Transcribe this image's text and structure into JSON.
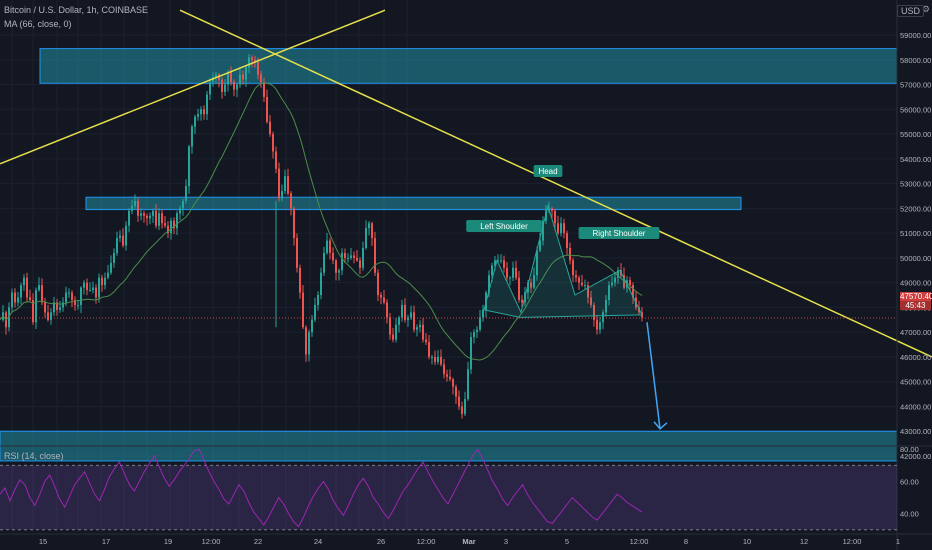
{
  "header": {
    "symbol": "Bitcoin / U.S. Dollar, 1h, COINBASE",
    "ma_label": "MA (66, close, 0)",
    "currency": "USD"
  },
  "rsi": {
    "label": "RSI (14, close)",
    "levels": [
      "80.00",
      "60.00",
      "40.00"
    ]
  },
  "price_tag": {
    "price": "47570.40",
    "countdown": "45:43"
  },
  "chart_data": {
    "type": "candlestick",
    "symbol": "Bitcoin / U.S. Dollar",
    "interval": "1h",
    "exchange": "COINBASE",
    "ylim": [
      41700,
      59200
    ],
    "price_ticks": [
      "59000.00",
      "58000.00",
      "57000.00",
      "56000.00",
      "55000.00",
      "54000.00",
      "53000.00",
      "52000.00",
      "51000.00",
      "50000.00",
      "49000.00",
      "48000.00",
      "47000.00",
      "46000.00",
      "45000.00",
      "44000.00",
      "43000.00",
      "42000.00"
    ],
    "x_ticks": [
      "15",
      "17",
      "19",
      "12:00",
      "22",
      "24",
      "26",
      "12:00",
      "Mar",
      "3",
      "5",
      "12:00",
      "8",
      "10",
      "12",
      "12:00",
      "1"
    ],
    "price_path": [
      [
        0,
        47500
      ],
      [
        3,
        47800
      ],
      [
        6,
        47200
      ],
      [
        9,
        48000
      ],
      [
        12,
        48600
      ],
      [
        15,
        48200
      ],
      [
        18,
        48400
      ],
      [
        21,
        48900
      ],
      [
        24,
        49200
      ],
      [
        27,
        48400
      ],
      [
        30,
        48300
      ],
      [
        33,
        47400
      ],
      [
        36,
        48700
      ],
      [
        39,
        48900
      ],
      [
        42,
        48200
      ],
      [
        45,
        47800
      ],
      [
        48,
        47500
      ],
      [
        51,
        47800
      ],
      [
        54,
        48200
      ],
      [
        57,
        47900
      ],
      [
        60,
        48000
      ],
      [
        63,
        48200
      ],
      [
        66,
        48600
      ],
      [
        69,
        48600
      ],
      [
        72,
        48300
      ],
      [
        75,
        48100
      ],
      [
        78,
        48100
      ],
      [
        81,
        48800
      ],
      [
        84,
        49000
      ],
      [
        87,
        48700
      ],
      [
        90,
        48700
      ],
      [
        93,
        48800
      ],
      [
        96,
        48400
      ],
      [
        99,
        49200
      ],
      [
        102,
        48900
      ],
      [
        105,
        49200
      ],
      [
        108,
        49400
      ],
      [
        111,
        49800
      ],
      [
        114,
        50200
      ],
      [
        117,
        50800
      ],
      [
        120,
        50900
      ],
      [
        123,
        50500
      ],
      [
        126,
        51300
      ],
      [
        129,
        51900
      ],
      [
        132,
        52100
      ],
      [
        135,
        52300
      ],
      [
        138,
        51700
      ],
      [
        141,
        51800
      ],
      [
        144,
        51700
      ],
      [
        147,
        51600
      ],
      [
        150,
        51700
      ],
      [
        153,
        51900
      ],
      [
        156,
        51300
      ],
      [
        159,
        51800
      ],
      [
        162,
        51400
      ],
      [
        165,
        51300
      ],
      [
        168,
        51000
      ],
      [
        171,
        51500
      ],
      [
        174,
        51200
      ],
      [
        177,
        51800
      ],
      [
        180,
        52000
      ],
      [
        183,
        52300
      ],
      [
        186,
        52900
      ],
      [
        189,
        54500
      ],
      [
        192,
        55300
      ],
      [
        195,
        55700
      ],
      [
        198,
        55800
      ],
      [
        201,
        56000
      ],
      [
        204,
        55800
      ],
      [
        207,
        56600
      ],
      [
        210,
        57100
      ],
      [
        213,
        57300
      ],
      [
        216,
        57400
      ],
      [
        219,
        57200
      ],
      [
        222,
        56700
      ],
      [
        225,
        57000
      ],
      [
        228,
        57500
      ],
      [
        231,
        57100
      ],
      [
        234,
        56800
      ],
      [
        237,
        57000
      ],
      [
        240,
        57400
      ],
      [
        243,
        57200
      ],
      [
        246,
        57700
      ],
      [
        249,
        58100
      ],
      [
        252,
        58000
      ],
      [
        255,
        57900
      ],
      [
        258,
        57400
      ],
      [
        261,
        57100
      ],
      [
        264,
        56500
      ],
      [
        267,
        55500
      ],
      [
        270,
        55000
      ],
      [
        273,
        54300
      ],
      [
        276,
        53600
      ],
      [
        279,
        52400
      ],
      [
        282,
        52700
      ],
      [
        285,
        53300
      ],
      [
        288,
        52600
      ],
      [
        291,
        52000
      ],
      [
        294,
        50800
      ],
      [
        297,
        49600
      ],
      [
        300,
        48600
      ],
      [
        303,
        47200
      ],
      [
        306,
        46100
      ],
      [
        309,
        47000
      ],
      [
        312,
        47500
      ],
      [
        315,
        48100
      ],
      [
        318,
        48500
      ],
      [
        321,
        49400
      ],
      [
        324,
        50200
      ],
      [
        327,
        50700
      ],
      [
        330,
        50200
      ],
      [
        333,
        49900
      ],
      [
        336,
        49400
      ],
      [
        339,
        49500
      ],
      [
        342,
        50200
      ],
      [
        345,
        50000
      ],
      [
        348,
        50000
      ],
      [
        351,
        50100
      ],
      [
        354,
        50000
      ],
      [
        357,
        49900
      ],
      [
        360,
        49600
      ],
      [
        363,
        50400
      ],
      [
        366,
        51200
      ],
      [
        369,
        51400
      ],
      [
        372,
        50800
      ],
      [
        375,
        49400
      ],
      [
        378,
        48500
      ],
      [
        381,
        48400
      ],
      [
        384,
        48200
      ],
      [
        387,
        47600
      ],
      [
        390,
        46900
      ],
      [
        393,
        46700
      ],
      [
        396,
        47300
      ],
      [
        399,
        47600
      ],
      [
        402,
        48100
      ],
      [
        405,
        47500
      ],
      [
        408,
        47600
      ],
      [
        411,
        47800
      ],
      [
        414,
        47100
      ],
      [
        417,
        47200
      ],
      [
        420,
        47300
      ],
      [
        423,
        46700
      ],
      [
        426,
        46600
      ],
      [
        429,
        46000
      ],
      [
        432,
        46000
      ],
      [
        435,
        45800
      ],
      [
        438,
        46000
      ],
      [
        441,
        45700
      ],
      [
        444,
        45300
      ],
      [
        447,
        45200
      ],
      [
        450,
        45100
      ],
      [
        453,
        44800
      ],
      [
        456,
        44400
      ],
      [
        459,
        44000
      ],
      [
        462,
        43700
      ],
      [
        465,
        44300
      ],
      [
        468,
        45500
      ],
      [
        471,
        46800
      ],
      [
        474,
        47000
      ],
      [
        477,
        47100
      ],
      [
        480,
        47600
      ],
      [
        483,
        47900
      ],
      [
        486,
        48600
      ],
      [
        489,
        49300
      ],
      [
        492,
        49700
      ],
      [
        495,
        49900
      ],
      [
        498,
        49900
      ],
      [
        501,
        49900
      ],
      [
        504,
        49600
      ],
      [
        507,
        49200
      ],
      [
        510,
        49200
      ],
      [
        513,
        49600
      ],
      [
        516,
        49200
      ],
      [
        519,
        48300
      ],
      [
        522,
        48200
      ],
      [
        525,
        48600
      ],
      [
        528,
        49000
      ],
      [
        531,
        48800
      ],
      [
        534,
        49300
      ],
      [
        537,
        50300
      ],
      [
        540,
        50700
      ],
      [
        543,
        51500
      ],
      [
        546,
        51900
      ],
      [
        549,
        52000
      ],
      [
        552,
        51900
      ],
      [
        555,
        51400
      ],
      [
        558,
        51000
      ],
      [
        561,
        51400
      ],
      [
        564,
        51000
      ],
      [
        567,
        50400
      ],
      [
        570,
        49900
      ],
      [
        573,
        49300
      ],
      [
        576,
        49200
      ],
      [
        579,
        49000
      ],
      [
        582,
        48900
      ],
      [
        585,
        48900
      ],
      [
        588,
        48400
      ],
      [
        591,
        48100
      ],
      [
        594,
        47500
      ],
      [
        597,
        47100
      ],
      [
        600,
        47400
      ],
      [
        603,
        47800
      ],
      [
        606,
        48300
      ],
      [
        609,
        48900
      ],
      [
        612,
        49000
      ],
      [
        615,
        49200
      ],
      [
        618,
        49500
      ],
      [
        621,
        49300
      ],
      [
        624,
        48800
      ],
      [
        627,
        49100
      ],
      [
        630,
        48900
      ],
      [
        633,
        48400
      ],
      [
        636,
        48000
      ],
      [
        639,
        47800
      ],
      [
        642,
        47600
      ]
    ],
    "moving_average": {
      "name": "MA (66, close, 0)",
      "period": 66
    },
    "zones": [
      {
        "from": 57050,
        "to": 58450
      },
      {
        "from": 51950,
        "to": 52450
      },
      {
        "from": 41800,
        "to": 43000
      }
    ],
    "trendlines": [
      {
        "p1": [
          0,
          53800
        ],
        "p2": [
          385,
          60000
        ]
      },
      {
        "p1": [
          180,
          60000
        ],
        "p2": [
          932,
          46000
        ]
      }
    ],
    "annotations": [
      "Left Shoulder",
      "Head",
      "Right Shoulder"
    ],
    "projection": {
      "from": 47400,
      "to": 43100
    },
    "last_price": 47570.4,
    "rsi": {
      "name": "RSI (14, close)",
      "levels": [
        70,
        30
      ],
      "ylim": [
        28,
        82
      ],
      "values": [
        52,
        56,
        48,
        55,
        61,
        58,
        50,
        45,
        52,
        60,
        64,
        57,
        49,
        44,
        51,
        58,
        62,
        66,
        59,
        52,
        48,
        55,
        63,
        68,
        72,
        65,
        58,
        54,
        60,
        66,
        71,
        76,
        69,
        62,
        57,
        61,
        66,
        70,
        74,
        79,
        80,
        73,
        66,
        60,
        55,
        49,
        46,
        52,
        58,
        54,
        47,
        41,
        37,
        33,
        38,
        44,
        50,
        46,
        40,
        35,
        32,
        38,
        45,
        51,
        56,
        60,
        55,
        48,
        43,
        39,
        45,
        52,
        58,
        62,
        57,
        50,
        46,
        41,
        37,
        42,
        48,
        54,
        58,
        63,
        68,
        72,
        66,
        60,
        55,
        50,
        46,
        52,
        58,
        64,
        70,
        76,
        80,
        74,
        67,
        60,
        55,
        49,
        45,
        50,
        54,
        58,
        52,
        47,
        43,
        39,
        35,
        34,
        38,
        42,
        46,
        50,
        47,
        44,
        41,
        38,
        36,
        40,
        44,
        48,
        52,
        50,
        47,
        45,
        43,
        41
      ]
    }
  }
}
